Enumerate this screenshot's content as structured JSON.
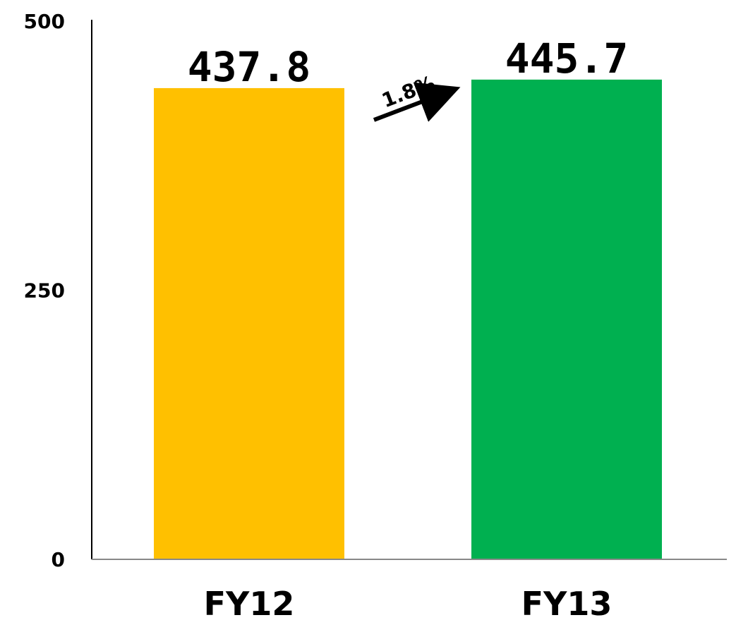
{
  "chart_data": {
    "type": "bar",
    "categories": [
      "FY12",
      "FY13"
    ],
    "values": [
      437.8,
      445.7
    ],
    "value_labels": [
      "437.8",
      "445.7"
    ],
    "yticks": [
      0,
      250,
      500
    ],
    "ytick_labels": [
      "0",
      "250",
      "500"
    ],
    "ylim": [
      0,
      500
    ],
    "title": "",
    "xlabel": "",
    "ylabel": "",
    "grid": false,
    "bar_colors": [
      "#FFC000",
      "#00B050"
    ],
    "annotation": {
      "text": "1.8%",
      "type": "growth-arrow",
      "from": "FY12",
      "to": "FY13"
    }
  }
}
